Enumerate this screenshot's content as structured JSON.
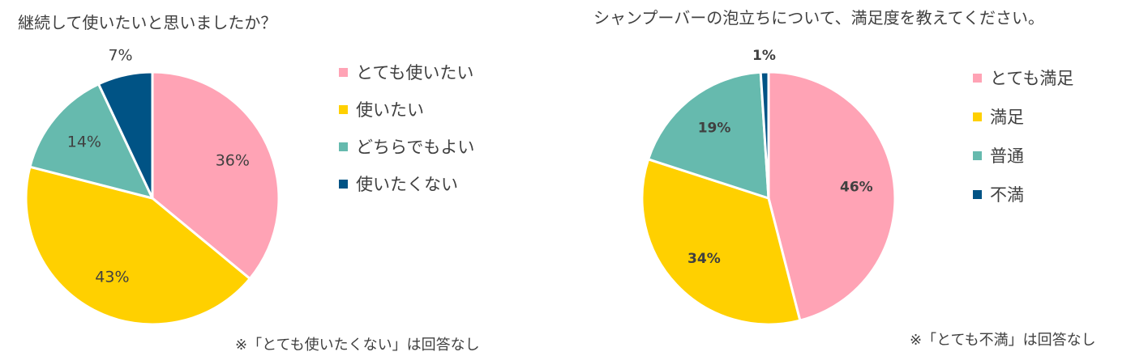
{
  "chart_data": [
    {
      "type": "pie",
      "title": "継続して使いたいと思いましたか？",
      "categories": [
        "とても使いたい",
        "使いたい",
        "どちらでもよい",
        "使いたくない"
      ],
      "values": [
        36,
        43,
        14,
        7
      ],
      "labels": [
        "36%",
        "43%",
        "14%",
        "7%"
      ],
      "colors": [
        "#FFA3B5",
        "#FFD000",
        "#66BAAE",
        "#005385"
      ],
      "legend_position": "right",
      "note": "※「とても使いたくない」は回答なし"
    },
    {
      "type": "pie",
      "title": "シャンプーバーの泡立ちについて、満足度を教えてください。",
      "categories": [
        "とても満足",
        "満足",
        "普通",
        "不満"
      ],
      "values": [
        46,
        34,
        19,
        1
      ],
      "labels": [
        "46%",
        "34%",
        "19%",
        "1%"
      ],
      "colors": [
        "#FFA3B5",
        "#FFD000",
        "#66BAAE",
        "#005385"
      ],
      "legend_position": "right",
      "note": "※「とても不満」は回答なし"
    }
  ]
}
